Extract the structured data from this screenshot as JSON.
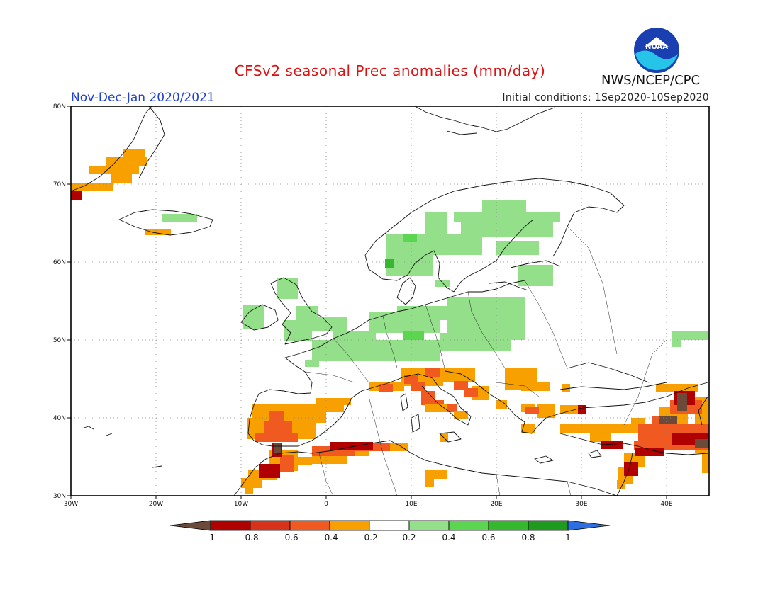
{
  "header": {
    "title": "CFSv2 seasonal Prec anomalies (mm/day)",
    "period": "Nov-Dec-Jan 2020/2021",
    "initial_conditions": "Initial conditions: 1Sep2020-10Sep2020",
    "agency": "NWS/NCEP/CPC",
    "logo_text": "NOAA"
  },
  "map": {
    "projection": "lat-lon",
    "lon_range": [
      -30,
      45
    ],
    "lat_range": [
      30,
      80
    ],
    "lon_ticks": [
      "30W",
      "20W",
      "10W",
      "0",
      "10E",
      "20E",
      "30E",
      "40E"
    ],
    "lat_ticks": [
      "30N",
      "40N",
      "50N",
      "60N",
      "70N",
      "80N"
    ],
    "gridlines": "dotted"
  },
  "colorbar": {
    "tick_labels": [
      "-1",
      "-0.8",
      "-0.6",
      "-0.4",
      "-0.2",
      "0.2",
      "0.4",
      "0.6",
      "0.8",
      "1"
    ],
    "colors": [
      "#6b4a3a",
      "#b00000",
      "#d8331a",
      "#f05a20",
      "#f7a000",
      "#ffffff",
      "#94e08a",
      "#5cd650",
      "#34b82d",
      "#1e9a1e",
      "#2f6ee0"
    ]
  },
  "chart_data": {
    "type": "heatmap",
    "title": "CFSv2 seasonal Prec anomalies (mm/day)",
    "units": "mm/day",
    "anomaly_regions": [
      {
        "region": "Iberian Peninsula",
        "anomaly": -0.5
      },
      {
        "region": "Morocco / Algeria coast",
        "anomaly": -0.7
      },
      {
        "region": "Southern Italy",
        "anomaly": -0.5
      },
      {
        "region": "Northern Italy / Balkans",
        "anomaly": -0.4
      },
      {
        "region": "Turkey / Caucasus",
        "anomaly": -0.6
      },
      {
        "region": "Greenland coast",
        "anomaly": -0.3
      },
      {
        "region": "Central Europe",
        "anomaly": 0.3
      },
      {
        "region": "Scandinavia",
        "anomaly": 0.3
      },
      {
        "region": "Iceland",
        "anomaly": 0.3
      },
      {
        "region": "Ireland / UK",
        "anomaly": 0.3
      }
    ]
  }
}
